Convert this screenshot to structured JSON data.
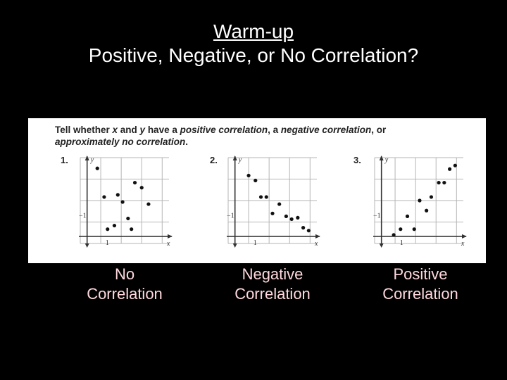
{
  "title": {
    "line1": "Warm-up",
    "line2": "Positive, Negative, or No Correlation?"
  },
  "instructions": {
    "p1": "Tell whether ",
    "x": "x",
    "p2": " and ",
    "y": "y",
    "p3": " have a ",
    "i1": "positive correlation",
    "p4": ", a ",
    "i2": "negative correlation",
    "p5": ", or",
    "i3": "approximately no correlation",
    "p6": "."
  },
  "colors": {
    "background": "#000000",
    "answer_text": "#ffd9de",
    "panel": "#ffffff"
  },
  "chart_data": [
    {
      "type": "scatter",
      "number": "1.",
      "xlabel": "x",
      "ylabel": "y",
      "tick_x": "1",
      "tick_y": "−1",
      "xlim": [
        -1,
        12
      ],
      "ylim": [
        -1,
        11
      ],
      "points": [
        [
          1.5,
          9.5
        ],
        [
          2.5,
          5.5
        ],
        [
          3,
          1
        ],
        [
          4,
          1.5
        ],
        [
          4.5,
          5.8
        ],
        [
          5.2,
          4.8
        ],
        [
          6,
          2.5
        ],
        [
          6.5,
          1
        ],
        [
          7,
          7.5
        ],
        [
          8,
          6.8
        ],
        [
          9,
          4.5
        ]
      ],
      "answer_line1": "No",
      "answer_line2": "Correlation"
    },
    {
      "type": "scatter",
      "number": "2.",
      "xlabel": "x",
      "ylabel": "y",
      "tick_x": "1",
      "tick_y": "−1",
      "xlim": [
        -1,
        12
      ],
      "ylim": [
        -1,
        11
      ],
      "points": [
        [
          2,
          8.5
        ],
        [
          3,
          7.8
        ],
        [
          3.8,
          5.5
        ],
        [
          4.6,
          5.5
        ],
        [
          5.5,
          3.2
        ],
        [
          6.5,
          4.5
        ],
        [
          7.5,
          2.8
        ],
        [
          8.3,
          2.4
        ],
        [
          9.2,
          2.6
        ],
        [
          10,
          1.2
        ],
        [
          10.8,
          0.8
        ]
      ],
      "answer_line1": "Negative",
      "answer_line2": "Correlation"
    },
    {
      "type": "scatter",
      "number": "3.",
      "xlabel": "x",
      "ylabel": "y",
      "tick_x": "1",
      "tick_y": "−1",
      "xlim": [
        -1,
        12
      ],
      "ylim": [
        -1,
        11
      ],
      "points": [
        [
          1.8,
          0.2
        ],
        [
          2.8,
          1
        ],
        [
          3.8,
          2.8
        ],
        [
          4.8,
          1
        ],
        [
          5.6,
          5
        ],
        [
          6.6,
          3.6
        ],
        [
          7.3,
          5.5
        ],
        [
          8.4,
          7.5
        ],
        [
          9.2,
          7.5
        ],
        [
          10,
          9.4
        ],
        [
          10.8,
          9.9
        ]
      ],
      "answer_line1": "Positive",
      "answer_line2": "Correlation"
    }
  ]
}
